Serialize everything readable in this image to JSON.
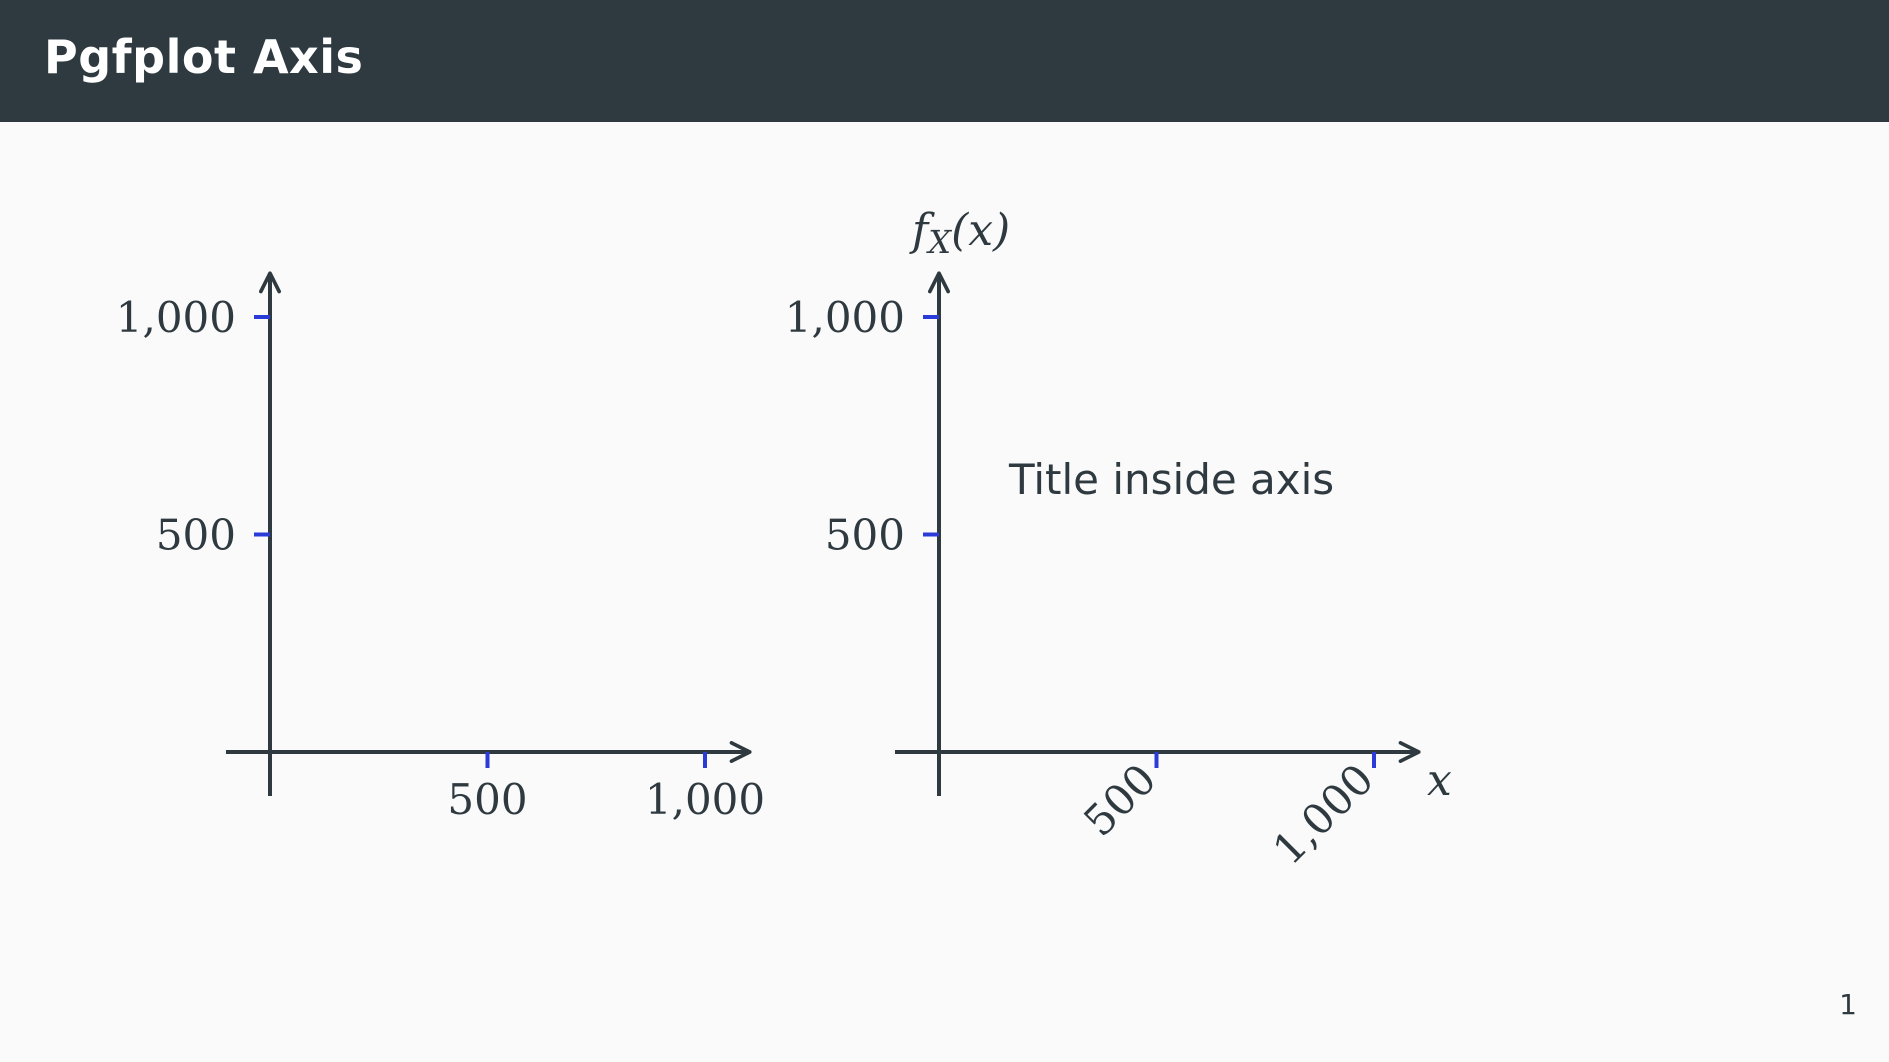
{
  "slide": {
    "title": "Pgfplot Axis",
    "page_number": "1"
  },
  "colors": {
    "header_bg": "#2f3a40",
    "axis": "#2f3a40",
    "tick": "#2b3bd8",
    "background": "#fafafa"
  },
  "chart_data": [
    {
      "type": "line",
      "title": "",
      "xlabel": "",
      "ylabel": "",
      "xlim": [
        -100,
        1100
      ],
      "ylim": [
        -100,
        1100
      ],
      "xticks": [
        500,
        1000
      ],
      "xtick_labels": [
        "500",
        "1,000"
      ],
      "yticks": [
        500,
        1000
      ],
      "ytick_labels": [
        "500",
        "1,000"
      ],
      "series": []
    },
    {
      "type": "line",
      "title": "Title inside axis",
      "xlabel": "x",
      "ylabel": "f",
      "ylabel_sub": "X",
      "ylabel_tail": "(x)",
      "xlim": [
        -100,
        1100
      ],
      "ylim": [
        -100,
        1100
      ],
      "xticks": [
        500,
        1000
      ],
      "xtick_labels": [
        "500",
        "1,000"
      ],
      "xtick_rotation": 45,
      "yticks": [
        500,
        1000
      ],
      "ytick_labels": [
        "500",
        "1,000"
      ],
      "series": []
    }
  ]
}
